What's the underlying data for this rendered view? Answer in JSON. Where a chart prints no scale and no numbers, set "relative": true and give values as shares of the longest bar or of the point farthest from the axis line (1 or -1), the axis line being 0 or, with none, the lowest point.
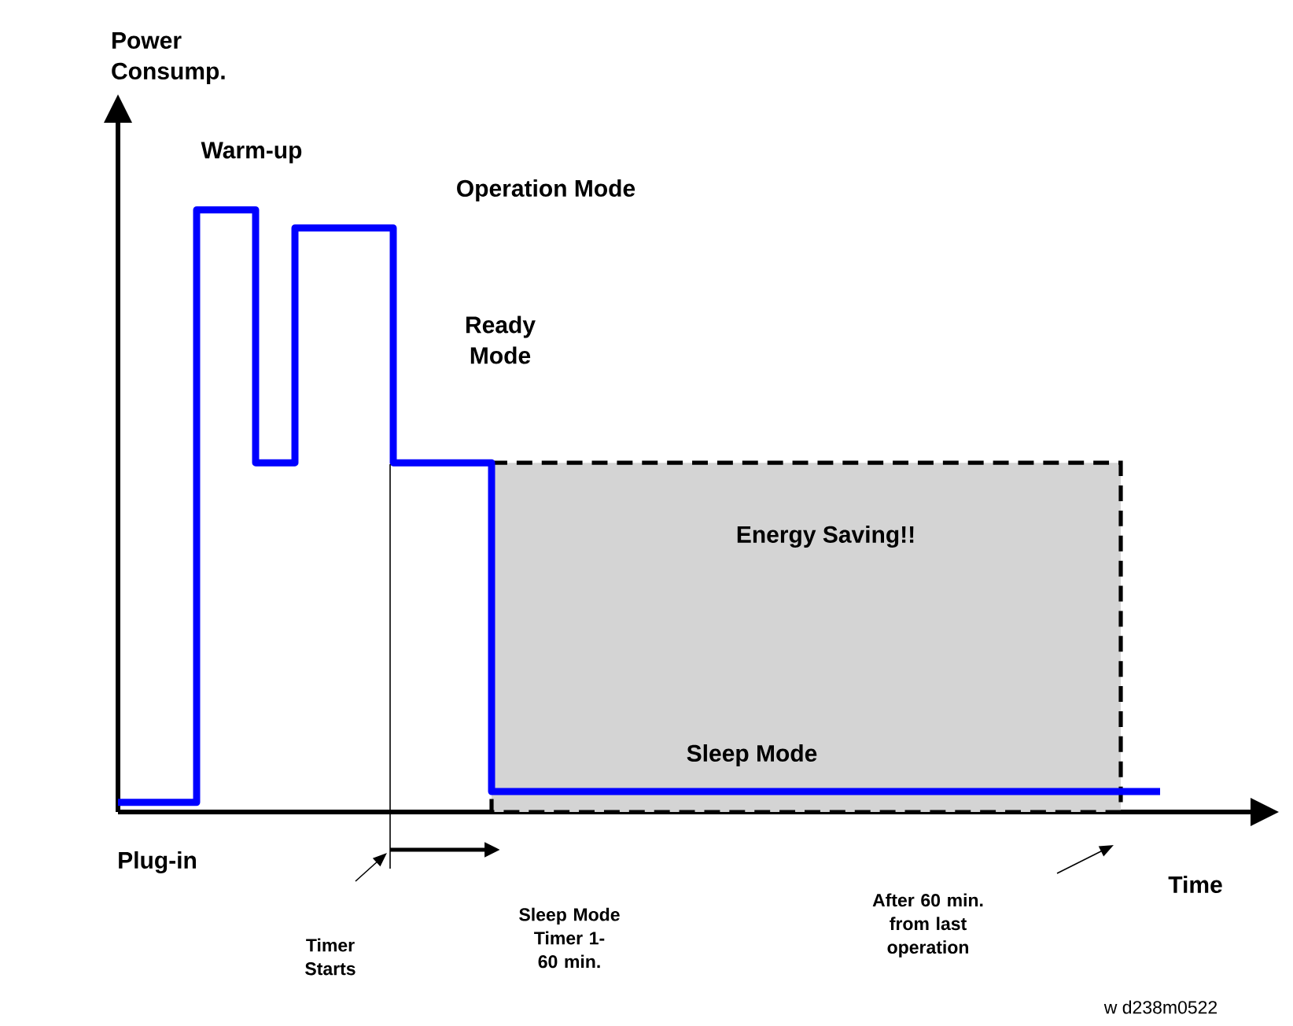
{
  "chart_data": {
    "type": "step",
    "relative": true,
    "xlabel": "Time",
    "marker": "none",
    "categories": [
      null,
      null,
      null,
      null,
      null,
      null,
      null,
      null,
      null,
      null,
      null,
      null,
      null,
      null,
      null,
      null,
      null,
      null,
      null,
      null,
      null,
      null,
      null,
      null,
      null,
      null,
      null,
      null,
      null,
      null,
      null,
      null,
      null,
      null,
      null,
      null,
      null,
      null,
      null,
      null,
      null,
      null,
      null,
      null,
      null,
      null,
      null,
      null,
      null,
      null,
      null,
      null,
      null,
      null
    ],
    "series": [
      {
        "type": "area",
        "color": "#d4d4d4",
        "line_style": "dashed",
        "values": [
          null,
          null,
          null,
          null,
          null,
          null,
          null,
          null,
          null,
          null,
          null,
          null,
          null,
          null,
          null,
          null,
          null,
          null,
          null,
          0.58,
          0.58,
          0.58,
          0.58,
          0.58,
          0.58,
          0.58,
          0.58,
          0.58,
          0.58,
          0.58,
          0.58,
          0.58,
          0.58,
          0.58,
          0.58,
          0.58,
          0.58,
          0.58,
          0.58,
          0.58,
          0.58,
          0.58,
          0.58,
          0.58,
          0.58,
          0.58,
          0.58,
          0.58,
          0.58,
          0.58,
          0.58,
          0.58,
          null,
          null
        ]
      },
      {
        "color": "#0000ff",
        "values": [
          0.016,
          0.016,
          0.016,
          0.016,
          1,
          1,
          1,
          0.58,
          0.58,
          0.97,
          0.97,
          0.97,
          0.97,
          0.97,
          0.58,
          0.58,
          0.58,
          0.58,
          0.58,
          0.034,
          0.034,
          0.034,
          0.034,
          0.034,
          0.034,
          0.034,
          0.034,
          0.034,
          0.034,
          0.034,
          0.034,
          0.034,
          0.034,
          0.034,
          0.034,
          0.034,
          0.034,
          0.034,
          0.034,
          0.034,
          0.034,
          0.034,
          0.034,
          0.034,
          0.034,
          0.034,
          0.034,
          0.034,
          0.034,
          0.034,
          0.034,
          0.034,
          0.034,
          0.034
        ]
      }
    ],
    "annotations": [
      "Warm-up",
      "Operation Mode",
      "Ready Mode",
      "Energy Saving!!",
      "Sleep Mode",
      "Plug-in",
      "Timer Starts",
      "Sleep Mode Timer 1-60 min.",
      "After 60 min. from last operation",
      "w  d238m0522",
      "Power Consump."
    ]
  }
}
